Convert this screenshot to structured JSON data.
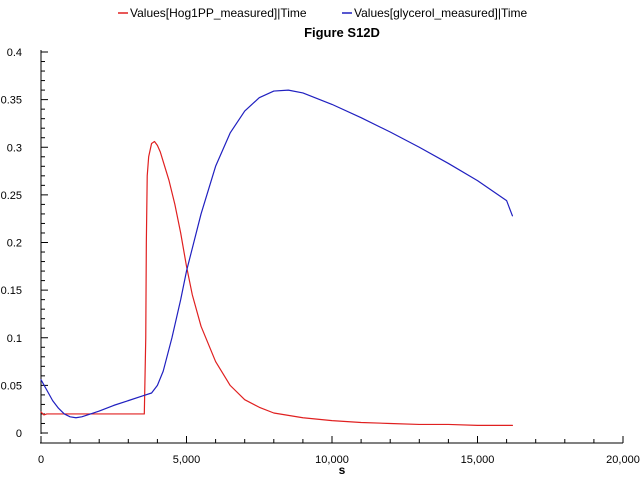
{
  "chart_data": {
    "type": "line",
    "title": "Figure S12D",
    "xlabel": "s",
    "ylabel": "",
    "xlim": [
      0,
      20000
    ],
    "ylim": [
      0,
      0.4
    ],
    "grid": false,
    "legend_position": "top",
    "x_ticks": [
      0,
      5000,
      10000,
      15000,
      20000
    ],
    "x_tick_labels": [
      "0",
      "5,000",
      "10,000",
      "15,000",
      "20,000"
    ],
    "y_ticks": [
      0,
      0.05,
      0.1,
      0.15,
      0.2,
      0.25,
      0.3,
      0.35,
      0.4
    ],
    "y_tick_labels": [
      "0",
      "0.05",
      "0.1",
      "0.15",
      "0.2",
      "0.25",
      "0.3",
      "0.35",
      "0.4"
    ],
    "series": [
      {
        "name": "Values[Hog1PP_measured]|Time",
        "color": "#e02020",
        "x": [
          0,
          100,
          200,
          500,
          1000,
          2000,
          3000,
          3550,
          3600,
          3620,
          3650,
          3700,
          3800,
          3900,
          4000,
          4100,
          4200,
          4400,
          4600,
          4800,
          5000,
          5200,
          5500,
          6000,
          6500,
          7000,
          7500,
          8000,
          9000,
          10000,
          11000,
          12000,
          13000,
          14000,
          15000,
          16000,
          16200
        ],
        "y": [
          0.022,
          0.019,
          0.02,
          0.02,
          0.02,
          0.02,
          0.02,
          0.02,
          0.1,
          0.2,
          0.27,
          0.29,
          0.304,
          0.306,
          0.302,
          0.295,
          0.285,
          0.265,
          0.24,
          0.21,
          0.175,
          0.145,
          0.112,
          0.075,
          0.05,
          0.035,
          0.027,
          0.021,
          0.016,
          0.013,
          0.011,
          0.01,
          0.009,
          0.009,
          0.008,
          0.008,
          0.008
        ]
      },
      {
        "name": "Values[glycerol_measured]|Time",
        "color": "#2020c0",
        "x": [
          0,
          200,
          400,
          600,
          800,
          1000,
          1200,
          1400,
          1600,
          2000,
          2500,
          3000,
          3500,
          3800,
          4000,
          4200,
          4500,
          4800,
          5000,
          5500,
          6000,
          6500,
          7000,
          7500,
          8000,
          8500,
          9000,
          10000,
          11000,
          12000,
          13000,
          14000,
          15000,
          16000,
          16200
        ],
        "y": [
          0.056,
          0.045,
          0.034,
          0.026,
          0.02,
          0.017,
          0.016,
          0.017,
          0.019,
          0.023,
          0.029,
          0.034,
          0.039,
          0.042,
          0.05,
          0.065,
          0.1,
          0.14,
          0.17,
          0.23,
          0.28,
          0.315,
          0.338,
          0.352,
          0.359,
          0.36,
          0.357,
          0.345,
          0.331,
          0.316,
          0.3,
          0.283,
          0.265,
          0.244,
          0.228
        ]
      }
    ]
  }
}
